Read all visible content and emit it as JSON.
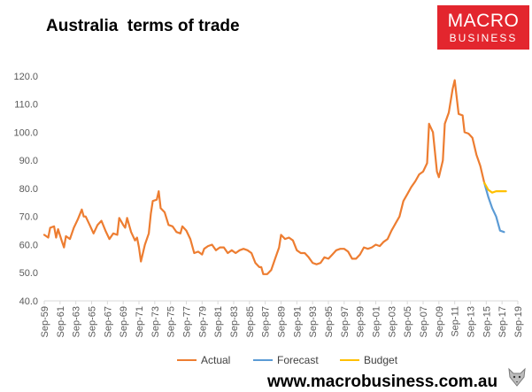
{
  "title": "Australia  terms of trade",
  "logo": {
    "line1": "MACRO",
    "line2": "BUSINESS"
  },
  "footer": "www.macrobusiness.com.au",
  "colors": {
    "actual": "#ed7d31",
    "forecast": "#5b9bd5",
    "budget": "#ffc000",
    "logo_bg": "#e3262e"
  },
  "icons": {
    "watermark": "fox-head-icon"
  },
  "chart_data": {
    "type": "line",
    "title": "Australia  terms of trade",
    "xlabel": "",
    "ylabel": "",
    "ylim": [
      40,
      125
    ],
    "xlim": [
      "Sep-59",
      "Sep-19"
    ],
    "grid": false,
    "legend_position": "bottom",
    "yticks": [
      "40.0",
      "50.0",
      "60.0",
      "70.0",
      "80.0",
      "90.0",
      "100.0",
      "110.0",
      "120.0"
    ],
    "xticks": [
      "Sep-59",
      "Sep-61",
      "Sep-63",
      "Sep-65",
      "Sep-67",
      "Sep-69",
      "Sep-71",
      "Sep-73",
      "Sep-75",
      "Sep-77",
      "Sep-79",
      "Sep-81",
      "Sep-83",
      "Sep-85",
      "Sep-87",
      "Sep-89",
      "Sep-91",
      "Sep-93",
      "Sep-95",
      "Sep-97",
      "Sep-99",
      "Sep-01",
      "Sep-03",
      "Sep-05",
      "Sep-07",
      "Sep-09",
      "Sep-11",
      "Sep-13",
      "Sep-15",
      "Sep-17",
      "Sep-19"
    ],
    "series": [
      {
        "name": "Actual",
        "color": "#ed7d31",
        "points": [
          [
            "Sep-59",
            63.5
          ],
          [
            "Mar-60",
            62.5
          ],
          [
            "Jun-60",
            66
          ],
          [
            "Dec-60",
            66.5
          ],
          [
            "Mar-61",
            62.5
          ],
          [
            "Jun-61",
            65.5
          ],
          [
            "Dec-61",
            61
          ],
          [
            "Mar-62",
            59
          ],
          [
            "Jun-62",
            63
          ],
          [
            "Dec-62",
            62
          ],
          [
            "Jun-63",
            66
          ],
          [
            "Dec-63",
            69
          ],
          [
            "Jun-64",
            72.5
          ],
          [
            "Sep-64",
            70
          ],
          [
            "Dec-64",
            70
          ],
          [
            "Jun-65",
            67
          ],
          [
            "Dec-65",
            64
          ],
          [
            "Jun-66",
            67
          ],
          [
            "Dec-66",
            68.5
          ],
          [
            "Jun-67",
            65
          ],
          [
            "Dec-67",
            62
          ],
          [
            "Jun-68",
            64
          ],
          [
            "Dec-68",
            63.5
          ],
          [
            "Mar-69",
            69.5
          ],
          [
            "Sep-69",
            67
          ],
          [
            "Dec-69",
            66
          ],
          [
            "Mar-70",
            69.5
          ],
          [
            "Sep-70",
            64.5
          ],
          [
            "Mar-71",
            61.5
          ],
          [
            "Jun-71",
            62.5
          ],
          [
            "Sep-71",
            59
          ],
          [
            "Dec-71",
            54
          ],
          [
            "Jun-72",
            60
          ],
          [
            "Dec-72",
            64
          ],
          [
            "Mar-73",
            71
          ],
          [
            "Jun-73",
            75.5
          ],
          [
            "Dec-73",
            76
          ],
          [
            "Mar-74",
            79
          ],
          [
            "Jun-74",
            73
          ],
          [
            "Dec-74",
            71.5
          ],
          [
            "Jun-75",
            67
          ],
          [
            "Dec-75",
            66.5
          ],
          [
            "Jun-76",
            64.5
          ],
          [
            "Dec-76",
            64
          ],
          [
            "Mar-77",
            66.5
          ],
          [
            "Sep-77",
            65
          ],
          [
            "Mar-78",
            62
          ],
          [
            "Sep-78",
            57
          ],
          [
            "Mar-79",
            57.5
          ],
          [
            "Sep-79",
            56.5
          ],
          [
            "Dec-79",
            58.5
          ],
          [
            "Jun-80",
            59.5
          ],
          [
            "Dec-80",
            60
          ],
          [
            "Jun-81",
            58
          ],
          [
            "Dec-81",
            59
          ],
          [
            "Jun-82",
            59
          ],
          [
            "Dec-82",
            57
          ],
          [
            "Jun-83",
            58
          ],
          [
            "Dec-83",
            57
          ],
          [
            "Jun-84",
            58
          ],
          [
            "Dec-84",
            58.5
          ],
          [
            "Jun-85",
            58
          ],
          [
            "Dec-85",
            57
          ],
          [
            "Jun-86",
            53.5
          ],
          [
            "Dec-86",
            52
          ],
          [
            "Mar-87",
            52
          ],
          [
            "Jun-87",
            49.5
          ],
          [
            "Dec-87",
            49.5
          ],
          [
            "Jun-88",
            51
          ],
          [
            "Dec-88",
            55
          ],
          [
            "Jun-89",
            59
          ],
          [
            "Sep-89",
            63.5
          ],
          [
            "Mar-90",
            62
          ],
          [
            "Sep-90",
            62.5
          ],
          [
            "Mar-91",
            61.5
          ],
          [
            "Sep-91",
            58
          ],
          [
            "Mar-92",
            57
          ],
          [
            "Sep-92",
            57
          ],
          [
            "Mar-93",
            55.5
          ],
          [
            "Sep-93",
            53.5
          ],
          [
            "Mar-94",
            53
          ],
          [
            "Sep-94",
            53.5
          ],
          [
            "Mar-95",
            55.5
          ],
          [
            "Sep-95",
            55
          ],
          [
            "Mar-96",
            56.5
          ],
          [
            "Sep-96",
            58
          ],
          [
            "Mar-97",
            58.5
          ],
          [
            "Sep-97",
            58.5
          ],
          [
            "Mar-98",
            57.5
          ],
          [
            "Sep-98",
            55
          ],
          [
            "Mar-99",
            55
          ],
          [
            "Sep-99",
            56.5
          ],
          [
            "Mar-00",
            59
          ],
          [
            "Sep-00",
            58.5
          ],
          [
            "Mar-01",
            59
          ],
          [
            "Sep-01",
            60
          ],
          [
            "Mar-02",
            59.5
          ],
          [
            "Sep-02",
            61
          ],
          [
            "Mar-03",
            62
          ],
          [
            "Sep-03",
            65
          ],
          [
            "Mar-04",
            67.5
          ],
          [
            "Sep-04",
            70
          ],
          [
            "Mar-05",
            75.5
          ],
          [
            "Sep-05",
            78
          ],
          [
            "Mar-06",
            80.5
          ],
          [
            "Sep-06",
            82.5
          ],
          [
            "Mar-07",
            85
          ],
          [
            "Sep-07",
            86
          ],
          [
            "Mar-08",
            89
          ],
          [
            "Jun-08",
            103
          ],
          [
            "Dec-08",
            100
          ],
          [
            "Jun-09",
            86
          ],
          [
            "Sep-09",
            84
          ],
          [
            "Mar-10",
            90
          ],
          [
            "Jun-10",
            103
          ],
          [
            "Dec-10",
            107
          ],
          [
            "Jun-11",
            115.5
          ],
          [
            "Sep-11",
            118.5
          ],
          [
            "Mar-12",
            106.5
          ],
          [
            "Sep-12",
            106
          ],
          [
            "Dec-12",
            100
          ],
          [
            "Jun-13",
            99.5
          ],
          [
            "Dec-13",
            98
          ],
          [
            "Jun-14",
            92
          ],
          [
            "Dec-14",
            88
          ],
          [
            "Jun-15",
            82
          ]
        ]
      },
      {
        "name": "Forecast",
        "color": "#5b9bd5",
        "points": [
          [
            "Jun-15",
            82
          ],
          [
            "Dec-15",
            77
          ],
          [
            "Jun-16",
            73
          ],
          [
            "Dec-16",
            70
          ],
          [
            "Jun-17",
            65
          ],
          [
            "Dec-17",
            64.5
          ]
        ]
      },
      {
        "name": "Budget",
        "color": "#ffc000",
        "points": [
          [
            "Jun-15",
            82
          ],
          [
            "Dec-15",
            79.5
          ],
          [
            "Jun-16",
            78.5
          ],
          [
            "Dec-16",
            79
          ],
          [
            "Jun-17",
            79
          ],
          [
            "Mar-18",
            79
          ]
        ]
      }
    ]
  }
}
